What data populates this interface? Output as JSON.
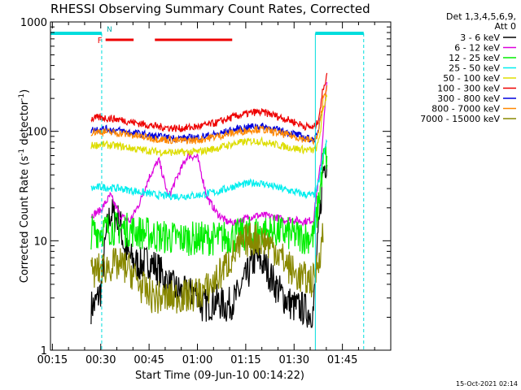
{
  "chart_data": {
    "type": "line",
    "title": "RHESSI Observing Summary Count Rates, Corrected",
    "xlabel": "Start Time (09-Jun-10 00:14:22)",
    "ylabel_main": "Corrected Count Rate (s",
    "ylabel_sup1": "-1",
    "ylabel_mid": " detector",
    "ylabel_sup2": "-1",
    "ylabel_end": ")",
    "y_scale": "log",
    "xlim": [
      0.24,
      2.0
    ],
    "ylim": [
      1,
      1000
    ],
    "x_ticks": [
      {
        "value": 0.25,
        "label": "00:15"
      },
      {
        "value": 0.5,
        "label": "00:30"
      },
      {
        "value": 0.75,
        "label": "00:45"
      },
      {
        "value": 1.0,
        "label": "01:00"
      },
      {
        "value": 1.25,
        "label": "01:15"
      },
      {
        "value": 1.5,
        "label": "01:30"
      },
      {
        "value": 1.75,
        "label": "01:45"
      }
    ],
    "y_ticks": [
      {
        "value": 1,
        "label": "1"
      },
      {
        "value": 10,
        "label": "10"
      },
      {
        "value": 100,
        "label": "100"
      },
      {
        "value": 1000,
        "label": "1000"
      }
    ],
    "legend_header": [
      "Det 1,3,4,5,6,9,",
      "Att 0"
    ],
    "legend_position": "outside-right",
    "flag_labels": {
      "flare": "F",
      "night": "N"
    },
    "night_bars": [
      [
        0.24,
        0.505
      ],
      [
        1.61,
        1.86
      ]
    ],
    "night_dashed_lines_x": [
      0.505,
      1.86
    ],
    "night_solid_lines_x": [
      0.24,
      1.61
    ],
    "flare_bars": [
      [
        0.525,
        0.67
      ],
      [
        0.78,
        1.18
      ]
    ],
    "series": [
      {
        "name": "3 - 6 keV",
        "color": "#000000",
        "x": [
          0.45,
          0.47,
          0.5,
          0.53,
          0.55,
          0.6,
          0.62,
          0.65,
          0.7,
          0.75,
          0.8,
          0.85,
          0.9,
          0.95,
          1.0,
          1.02,
          1.05,
          1.1,
          1.15,
          1.2,
          1.25,
          1.3,
          1.35,
          1.4,
          1.45,
          1.5,
          1.55,
          1.58,
          1.6,
          1.62,
          1.64,
          1.65,
          1.67
        ],
        "y": [
          2.5,
          2.6,
          3.5,
          12,
          18,
          15,
          9,
          7,
          6,
          6.5,
          5.5,
          4,
          3.5,
          3.2,
          3.5,
          2.5,
          2.6,
          2.8,
          2.5,
          3,
          4.5,
          7,
          6,
          4,
          3,
          2.5,
          2.4,
          2.2,
          2.3,
          8,
          25,
          45,
          55
        ]
      },
      {
        "name": "6 - 12 keV",
        "color": "#dd00dd",
        "x": [
          0.45,
          0.5,
          0.55,
          0.6,
          0.65,
          0.7,
          0.75,
          0.8,
          0.85,
          0.9,
          0.95,
          1.0,
          1.03,
          1.05,
          1.1,
          1.15,
          1.2,
          1.25,
          1.3,
          1.35,
          1.4,
          1.45,
          1.5,
          1.55,
          1.6,
          1.62,
          1.64,
          1.65,
          1.67
        ],
        "y": [
          17,
          19,
          26,
          17,
          15,
          22,
          38,
          55,
          25,
          40,
          60,
          58,
          35,
          25,
          18,
          15,
          14.5,
          16,
          17,
          17,
          16.5,
          15.5,
          15.5,
          15,
          15.5,
          30,
          55,
          100,
          280
        ]
      },
      {
        "name": "12 - 25 keV",
        "color": "#00ee00",
        "x": [
          0.45,
          0.5,
          0.55,
          0.6,
          0.65,
          0.7,
          0.8,
          0.9,
          1.0,
          1.1,
          1.15,
          1.2,
          1.25,
          1.3,
          1.35,
          1.4,
          1.45,
          1.5,
          1.55,
          1.6,
          1.62,
          1.64,
          1.65,
          1.67
        ],
        "y": [
          12,
          12.5,
          13,
          13,
          12.5,
          12,
          11,
          10.5,
          10.5,
          10.5,
          10.8,
          11,
          11.5,
          12,
          12,
          12.2,
          11.8,
          11.2,
          10.8,
          11,
          18,
          35,
          55,
          60
        ]
      },
      {
        "name": "25 - 50 keV",
        "color": "#00eeee",
        "x": [
          0.45,
          0.5,
          0.6,
          0.7,
          0.8,
          0.9,
          1.0,
          1.1,
          1.2,
          1.3,
          1.35,
          1.4,
          1.5,
          1.55,
          1.6,
          1.62,
          1.64,
          1.65,
          1.67
        ],
        "y": [
          30,
          31,
          30,
          28,
          26,
          25.5,
          26,
          28,
          32,
          34,
          33,
          31,
          28,
          26.5,
          26,
          30,
          45,
          60,
          80
        ]
      },
      {
        "name": "50 - 100 keV",
        "color": "#dddd00",
        "x": [
          0.45,
          0.5,
          0.6,
          0.7,
          0.8,
          0.9,
          1.0,
          1.1,
          1.2,
          1.3,
          1.35,
          1.4,
          1.5,
          1.55,
          1.6,
          1.62,
          1.64,
          1.65,
          1.67
        ],
        "y": [
          74,
          76,
          73,
          68,
          65,
          64,
          65,
          70,
          78,
          82,
          80,
          76,
          70,
          68,
          67,
          72,
          110,
          160,
          220
        ]
      },
      {
        "name": "100 - 300 keV",
        "color": "#ee0000",
        "x": [
          0.45,
          0.5,
          0.6,
          0.7,
          0.8,
          0.9,
          1.0,
          1.1,
          1.2,
          1.3,
          1.35,
          1.4,
          1.5,
          1.55,
          1.6,
          1.62,
          1.64,
          1.65,
          1.67
        ],
        "y": [
          130,
          134,
          128,
          118,
          110,
          106,
          110,
          120,
          138,
          150,
          148,
          140,
          122,
          112,
          108,
          118,
          180,
          250,
          320
        ]
      },
      {
        "name": "300 - 800 keV",
        "color": "#0000dd",
        "x": [
          0.45,
          0.5,
          0.6,
          0.7,
          0.8,
          0.9,
          1.0,
          1.1,
          1.2,
          1.3,
          1.35,
          1.4,
          1.5,
          1.55,
          1.6,
          1.62,
          1.64
        ],
        "y": [
          103,
          106,
          101,
          95,
          89,
          86,
          88,
          94,
          104,
          112,
          110,
          104,
          95,
          88,
          84,
          90,
          150
        ]
      },
      {
        "name": "800 - 7000 keV",
        "color": "#ff8800",
        "x": [
          0.45,
          0.5,
          0.6,
          0.7,
          0.8,
          0.9,
          1.0,
          1.1,
          1.2,
          1.3,
          1.35,
          1.4,
          1.5,
          1.55,
          1.6,
          1.62,
          1.64,
          1.65,
          1.67
        ],
        "y": [
          98,
          100,
          96,
          90,
          85,
          82,
          83,
          90,
          98,
          105,
          103,
          98,
          90,
          85,
          82,
          88,
          140,
          200,
          260
        ]
      },
      {
        "name": "7000 - 15000 keV",
        "color": "#888800",
        "x": [
          0.45,
          0.5,
          0.55,
          0.6,
          0.65,
          0.7,
          0.75,
          0.8,
          0.85,
          0.9,
          0.95,
          1.0,
          1.05,
          1.1,
          1.15,
          1.2,
          1.25,
          1.3,
          1.35,
          1.4,
          1.45,
          1.5,
          1.55,
          1.6,
          1.62,
          1.64,
          1.65
        ],
        "y": [
          5,
          5.5,
          6,
          6,
          5.5,
          4,
          3.2,
          3,
          3,
          3.1,
          3.1,
          3.3,
          3.6,
          4.5,
          6,
          8,
          10,
          10.5,
          10,
          8.5,
          6.5,
          5,
          4.5,
          4.3,
          6,
          9,
          12
        ]
      }
    ]
  },
  "footer": {
    "date_stamp": "15-Oct-2021 02:14"
  }
}
